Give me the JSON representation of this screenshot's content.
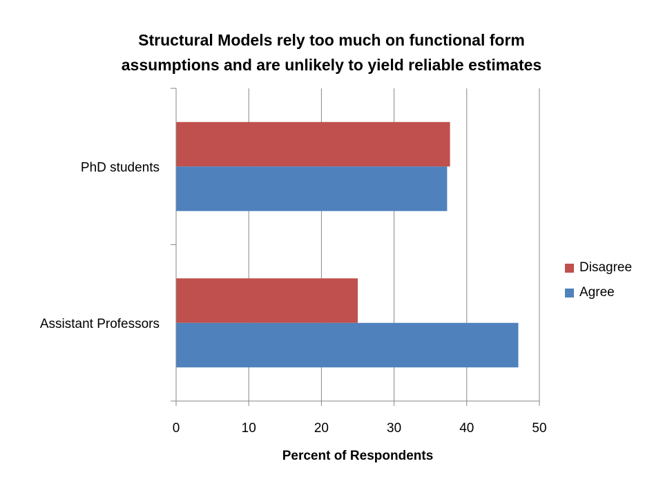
{
  "chart_data": {
    "type": "bar",
    "orientation": "horizontal",
    "title": [
      "Structural Models rely too much on functional form",
      "assumptions and are unlikely to yield reliable estimates"
    ],
    "xlabel": "Percent of Respondents",
    "ylabel": "",
    "xlim": [
      0,
      50
    ],
    "xticks": [
      "0",
      "10",
      "20",
      "30",
      "40",
      "50"
    ],
    "categories": [
      "Assistant Professors",
      "PhD students"
    ],
    "series": [
      {
        "name": "Agree",
        "color": "#4F81BD",
        "values": [
          47.1,
          37.3
        ]
      },
      {
        "name": "Disagree",
        "color": "#C0504D",
        "values": [
          25.0,
          37.7
        ]
      }
    ],
    "legend_order": [
      "Disagree",
      "Agree"
    ],
    "grid": "vertical",
    "legend_position": "right"
  }
}
